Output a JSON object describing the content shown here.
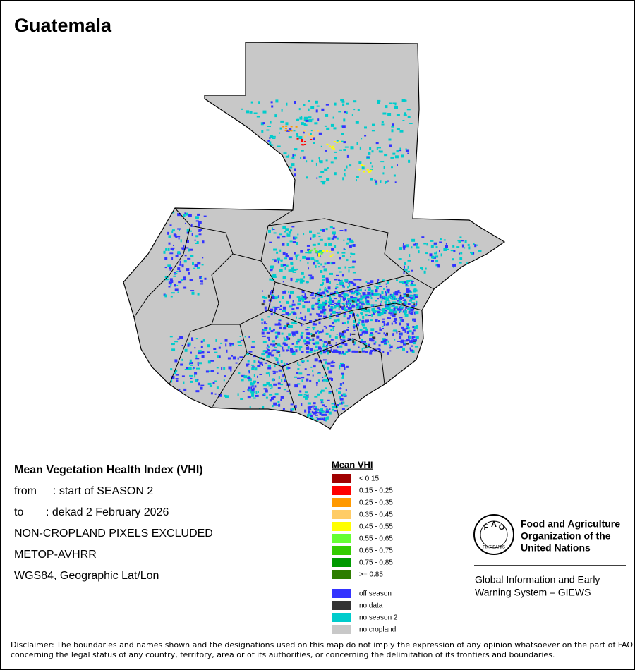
{
  "title": "Guatemala",
  "info": {
    "heading": "Mean Vegetation Health Index (VHI)",
    "period": [
      {
        "label": "from",
        "text": ": start of SEASON 2"
      },
      {
        "label": "to",
        "text": ": dekad 2 February 2026"
      }
    ],
    "lines": [
      "NON-CROPLAND PIXELS EXCLUDED",
      "METOP-AVHRR",
      "WGS84, Geographic Lat/Lon"
    ]
  },
  "legend": {
    "title": "Mean VHI",
    "classes": [
      {
        "label": "< 0.15",
        "color": "#a00000"
      },
      {
        "label": "0.15 - 0.25",
        "color": "#ff0000"
      },
      {
        "label": "0.25 - 0.35",
        "color": "#ff9900"
      },
      {
        "label": "0.35 - 0.45",
        "color": "#ffcc66"
      },
      {
        "label": "0.45 - 0.55",
        "color": "#ffff00"
      },
      {
        "label": "0.55 - 0.65",
        "color": "#66ff33"
      },
      {
        "label": "0.65 - 0.75",
        "color": "#33cc00"
      },
      {
        "label": "0.75 - 0.85",
        "color": "#009900"
      },
      {
        "label": ">= 0.85",
        "color": "#2e7d00"
      }
    ],
    "special": [
      {
        "label": "off season",
        "color": "#3333ff"
      },
      {
        "label": "no data",
        "color": "#333333"
      },
      {
        "label": "no season 2",
        "color": "#00cccc"
      },
      {
        "label": "no cropland",
        "color": "#c8c8c8"
      }
    ]
  },
  "logo": {
    "emblem": {
      "letters": [
        "F",
        "A",
        "O"
      ],
      "motto": "FIAT PANIS"
    },
    "org_lines": [
      "Food and Agriculture",
      "Organization of the",
      "United Nations"
    ],
    "system_lines": [
      "Global Information and Early",
      "Warning System – GIEWS"
    ]
  },
  "disclaimer": [
    "Disclaimer: The boundaries and names shown and the designations used on this map do not imply the expression of any opinion whatsoever on the part of FAO",
    "concerning the legal status of any country, territory, area or of its authorities, or concerning the delimitation of its frontiers and boundaries."
  ]
}
